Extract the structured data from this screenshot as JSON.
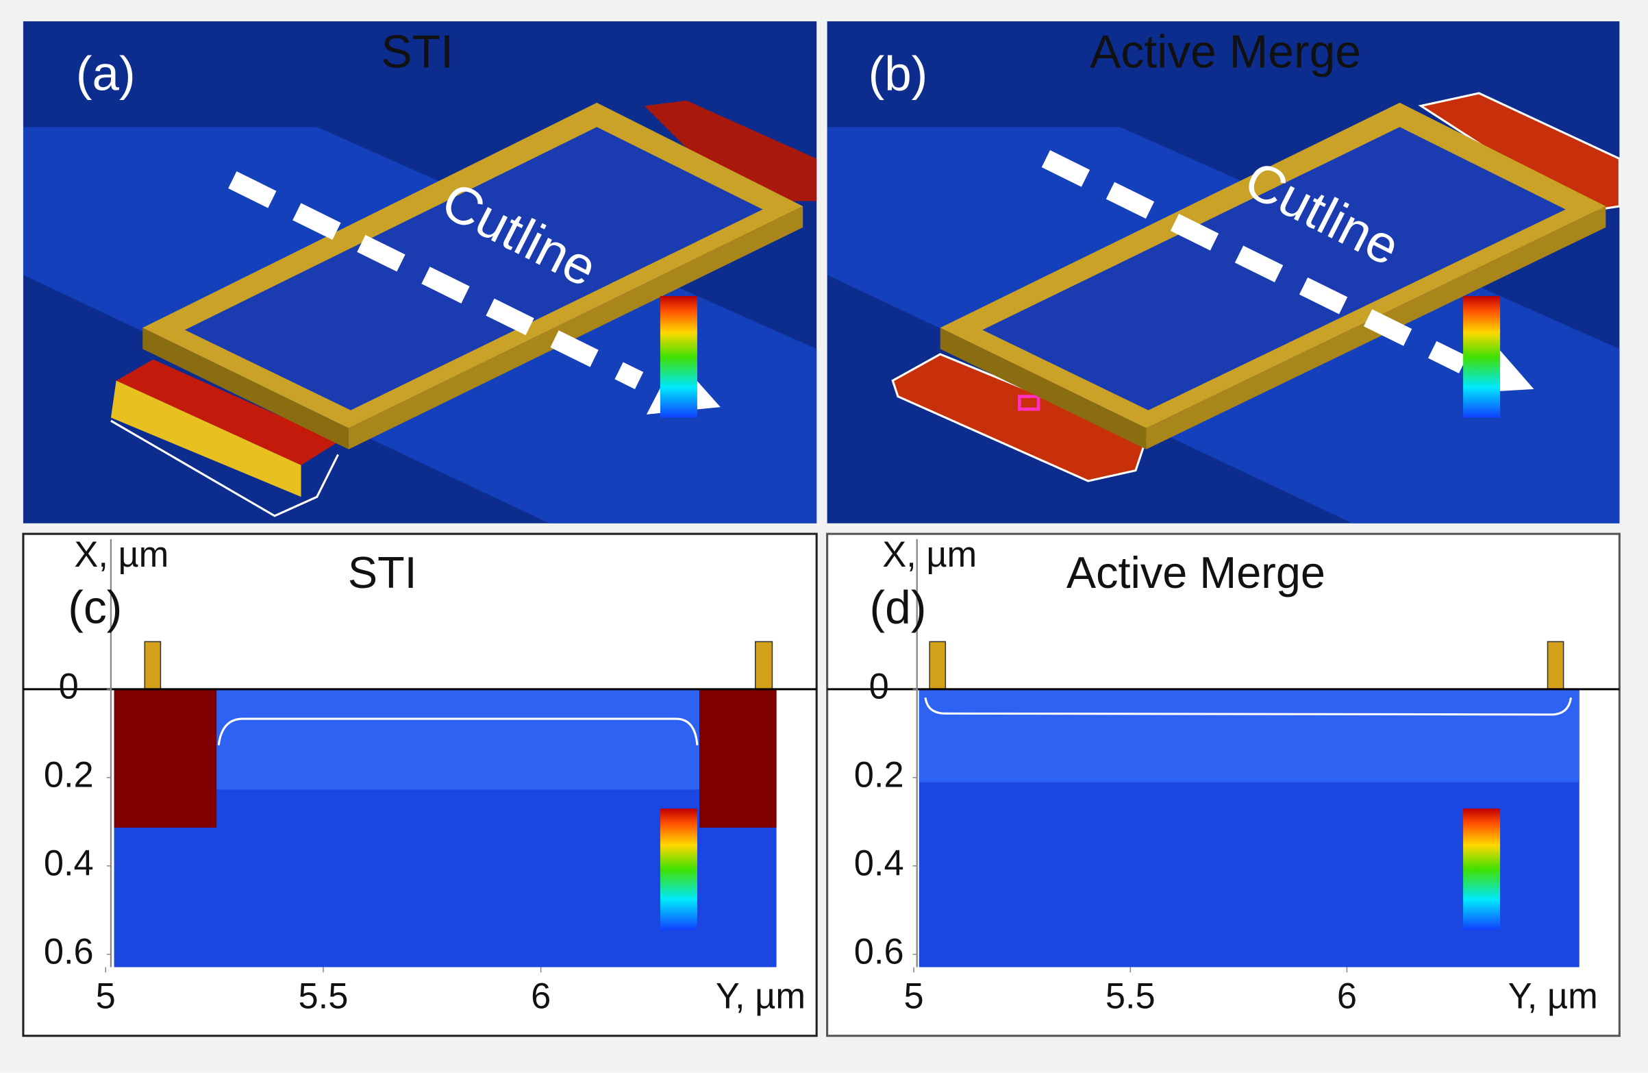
{
  "panels": [
    {
      "label": "(a)",
      "title": "STI",
      "annotation": "Cutline"
    },
    {
      "label": "(b)",
      "title": "Active Merge",
      "annotation": "Cutline"
    },
    {
      "label": "(c)",
      "title": "STI",
      "y_axis_label": "X, µm",
      "x_axis_label": "Y, µm",
      "yticks": [
        0,
        0.2,
        0.4,
        0.6
      ],
      "xticks": [
        5,
        5.5,
        6
      ]
    },
    {
      "label": "(d)",
      "title": "Active Merge",
      "y_axis_label": "X, µm",
      "x_axis_label": "Y, µm",
      "yticks": [
        0,
        0.2,
        0.4,
        0.6
      ],
      "xticks": [
        5,
        5.5,
        6
      ]
    }
  ]
}
